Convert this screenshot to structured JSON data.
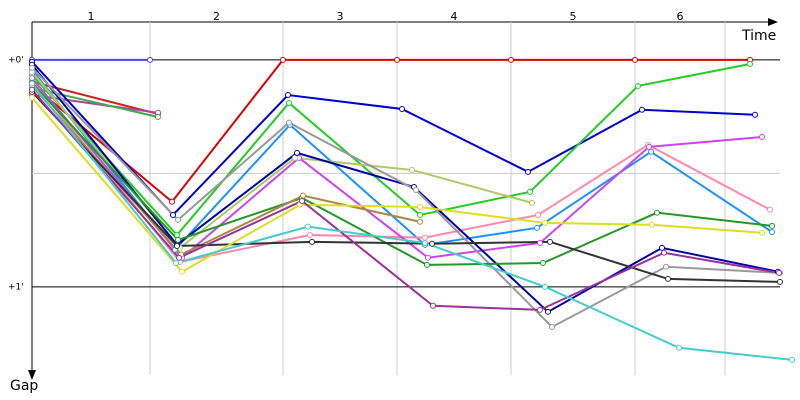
{
  "chart_data": {
    "type": "line",
    "x_label": "Time",
    "y_label": "Gap",
    "xlim": [
      0,
      768
    ],
    "ylim": [
      -10,
      83.3
    ],
    "yticks": [
      {
        "value": 0,
        "label": "+0'"
      },
      {
        "value": 60,
        "label": "+1'"
      }
    ],
    "minor_yticks": [
      30
    ],
    "lap_labels": [
      "1",
      "2",
      "3",
      "4",
      "5",
      "6"
    ],
    "lap_boundaries": [
      118,
      251,
      365,
      479,
      603,
      693
    ],
    "series": [
      {
        "color": "#dd0000",
        "x": [
          0,
          140,
          251,
          365,
          479,
          603,
          718
        ],
        "values": [
          6.6,
          37.5,
          0,
          0,
          0,
          0,
          0
        ]
      },
      {
        "color": "#cc2222",
        "x": [
          0,
          126
        ],
        "values": [
          5.8,
          14.3
        ]
      },
      {
        "color": "#aa44aa",
        "x": [
          0,
          126
        ],
        "values": [
          9.3,
          14.0
        ]
      },
      {
        "color": "#44aa44",
        "x": [
          0,
          126
        ],
        "values": [
          7.4,
          15.1
        ]
      },
      {
        "color": "#4444ee",
        "x": [
          0,
          118
        ],
        "values": [
          0,
          0
        ]
      },
      {
        "color": "#0000cc",
        "x": [
          0,
          141,
          256,
          370,
          496,
          610,
          723
        ],
        "values": [
          0.5,
          41.0,
          9.3,
          13.0,
          29.6,
          13.2,
          14.5
        ]
      },
      {
        "color": "#22cc22",
        "x": [
          0,
          145,
          257,
          388,
          498,
          606,
          718
        ],
        "values": [
          4.0,
          46.3,
          11.4,
          41.0,
          34.9,
          6.9,
          1.1
        ]
      },
      {
        "color": "#1e90ff",
        "x": [
          0,
          143,
          258,
          393,
          505,
          619,
          740
        ],
        "values": [
          2.6,
          50.2,
          17.2,
          48.9,
          44.4,
          24.3,
          45.5
        ]
      },
      {
        "color": "#ff88aa",
        "x": [
          0,
          148,
          278,
          393,
          506,
          616,
          738
        ],
        "values": [
          5.3,
          53.4,
          46.3,
          47.0,
          41.0,
          22.5,
          39.6
        ]
      },
      {
        "color": "#cc44ee",
        "x": [
          0,
          150,
          267,
          396,
          508,
          617,
          730
        ],
        "values": [
          4.8,
          52.3,
          25.9,
          52.3,
          48.4,
          23.0,
          20.4
        ]
      },
      {
        "color": "#aacc66",
        "x": [
          0,
          148,
          263,
          380,
          500
        ],
        "values": [
          3.2,
          49.7,
          25.9,
          29.1,
          37.8
        ]
      },
      {
        "color": "#0000aa",
        "x": [
          0,
          145,
          265,
          382,
          516,
          630,
          746
        ],
        "values": [
          1.3,
          48.9,
          24.6,
          33.6,
          66.6,
          49.7,
          56.0
        ]
      },
      {
        "color": "#999999",
        "x": [
          0,
          146,
          257,
          384,
          520,
          634,
          748
        ],
        "values": [
          2.1,
          42.3,
          16.6,
          34.4,
          70.6,
          54.7,
          56.3
        ]
      },
      {
        "color": "#229922",
        "x": [
          0,
          146,
          270,
          395,
          511,
          625,
          740
        ],
        "values": [
          6.1,
          47.6,
          36.5,
          54.2,
          53.7,
          40.4,
          43.9
        ]
      },
      {
        "color": "#aa8844",
        "x": [
          0,
          149,
          271,
          388
        ],
        "values": [
          6.9,
          51.5,
          35.9,
          42.8
        ]
      },
      {
        "color": "#333333",
        "x": [
          0,
          145,
          280,
          400,
          518,
          636,
          748
        ],
        "values": [
          8.5,
          49.2,
          48.1,
          48.6,
          48.1,
          57.9,
          58.7
        ]
      },
      {
        "color": "#dddd22",
        "x": [
          0,
          150,
          268,
          388,
          513,
          620,
          730
        ],
        "values": [
          10.0,
          56.0,
          38.3,
          38.9,
          43.1,
          43.6,
          45.7
        ]
      },
      {
        "color": "#993399",
        "x": [
          0,
          147,
          270,
          401,
          508,
          632,
          747
        ],
        "values": [
          7.9,
          52.3,
          37.3,
          65.0,
          66.1,
          51.0,
          56.3
        ]
      },
      {
        "color": "#44cccc",
        "x": [
          0,
          144,
          276,
          393,
          513,
          647,
          760
        ],
        "values": [
          6.3,
          53.7,
          44.1,
          48.4,
          60.0,
          76.1,
          79.3
        ]
      }
    ]
  }
}
